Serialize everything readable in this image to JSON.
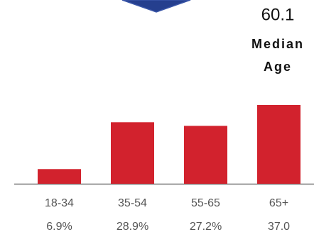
{
  "chart_data": {
    "type": "bar",
    "categories": [
      "18-34",
      "35-54",
      "55-65",
      "65+"
    ],
    "values": [
      6.9,
      28.9,
      27.2,
      37.0
    ],
    "value_labels": [
      "6.9%",
      "28.9%",
      "27.2%",
      "37.0"
    ],
    "color": "#d2222d"
  },
  "stat": {
    "value": 60.1,
    "label_lines": [
      "Median",
      "Age"
    ]
  }
}
